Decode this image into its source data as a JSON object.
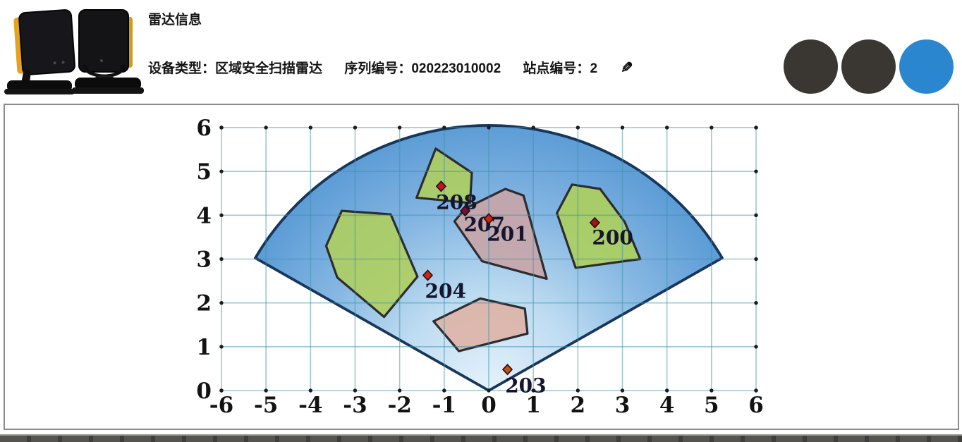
{
  "header": {
    "title": "雷达信息",
    "fields": [
      {
        "label": "设备类型：",
        "value": "区域安全扫描雷达"
      },
      {
        "label": "序列编号：",
        "value": "020223010002"
      },
      {
        "label": "站点编号：",
        "value": "2"
      }
    ],
    "edit_icon": "✎",
    "buttons": [
      {
        "id": "circle-button-1",
        "color": "#3a3733"
      },
      {
        "id": "circle-button-2",
        "color": "#3a3733"
      },
      {
        "id": "circle-button-3",
        "color": "#2b86d0"
      }
    ]
  },
  "chart_data": {
    "type": "scatter",
    "title": "",
    "xlabel": "",
    "ylabel": "",
    "xlim": [
      -6,
      6
    ],
    "ylim": [
      0,
      6
    ],
    "x_ticks": [
      -6,
      -5,
      -4,
      -3,
      -2,
      -1,
      0,
      1,
      2,
      3,
      4,
      5,
      6
    ],
    "y_ticks": [
      0,
      1,
      2,
      3,
      4,
      5,
      6
    ],
    "grid": true,
    "grid_color": "rgba(60,145,170,0.5)",
    "tick_dot_color": "#1c1c1c",
    "fan_sector": {
      "center": [
        0,
        0
      ],
      "radius": 6.05,
      "start_angle_deg": 30,
      "end_angle_deg": 150,
      "stroke": "#16365a",
      "gradient": [
        "#e6f2fb",
        "#bedcf1",
        "#84b6e2",
        "#5b9bd5"
      ]
    },
    "zones": [
      {
        "id": "zone-left-green",
        "fill": "#b0cf5b",
        "stroke": "#2c2c30",
        "points": [
          [
            -3.65,
            3.3
          ],
          [
            -3.3,
            4.1
          ],
          [
            -2.2,
            4.02
          ],
          [
            -1.6,
            2.6
          ],
          [
            -2.35,
            1.68
          ],
          [
            -3.4,
            2.58
          ]
        ]
      },
      {
        "id": "zone-top-green",
        "fill": "#b0cf5b",
        "stroke": "#2c2c30",
        "points": [
          [
            -1.62,
            4.4
          ],
          [
            -1.19,
            5.52
          ],
          [
            -0.38,
            4.97
          ],
          [
            -0.42,
            4.28
          ]
        ]
      },
      {
        "id": "zone-right-green",
        "fill": "#aed058",
        "stroke": "#2c2c30",
        "points": [
          [
            1.53,
            4.05
          ],
          [
            1.87,
            4.7
          ],
          [
            2.5,
            4.6
          ],
          [
            3.05,
            3.85
          ],
          [
            3.4,
            3.0
          ],
          [
            1.95,
            2.8
          ]
        ]
      },
      {
        "id": "zone-center-pink",
        "fill": "#c9a4a6",
        "stroke": "#2c2c30",
        "points": [
          [
            -0.77,
            3.86
          ],
          [
            -0.53,
            4.15
          ],
          [
            0.37,
            4.6
          ],
          [
            0.78,
            4.45
          ],
          [
            1.3,
            2.55
          ],
          [
            -0.15,
            2.95
          ]
        ]
      },
      {
        "id": "zone-lower-pink",
        "fill": "#deb2a4",
        "stroke": "#2c2c30",
        "points": [
          [
            -1.24,
            1.58
          ],
          [
            -0.19,
            2.1
          ],
          [
            0.81,
            1.87
          ],
          [
            0.87,
            1.3
          ],
          [
            -0.67,
            0.9
          ]
        ]
      }
    ],
    "markers": [
      {
        "label": "208",
        "x": -1.07,
        "y": 4.66,
        "color": "#c01520",
        "label_x": -0.72,
        "label_y": 4.3
      },
      {
        "label": "207",
        "x": -0.53,
        "y": 4.1,
        "color": "#6e1038",
        "label_x": -0.1,
        "label_y": 3.8
      },
      {
        "label": "201",
        "x": 0,
        "y": 3.92,
        "color": "#cc2613",
        "label_x": 0.42,
        "label_y": 3.58
      },
      {
        "label": "204",
        "x": -1.37,
        "y": 2.63,
        "color": "#cc2613",
        "label_x": -0.97,
        "label_y": 2.28
      },
      {
        "label": "200",
        "x": 2.38,
        "y": 3.83,
        "color": "#a81212",
        "label_x": 2.78,
        "label_y": 3.5
      },
      {
        "label": "203",
        "x": 0.42,
        "y": 0.48,
        "color": "#c1510e",
        "label_x": 0.83,
        "label_y": 0.12
      }
    ],
    "label_color": "#15152e"
  }
}
